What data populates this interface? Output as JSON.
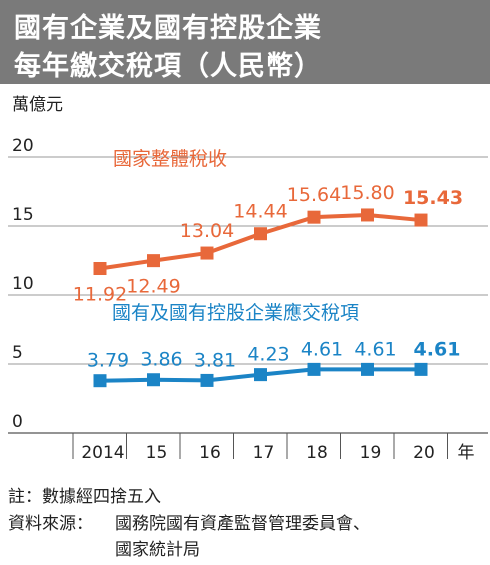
{
  "title": [
    "國有企業及國有控股企業",
    "每年繳交稅項（人民幣）"
  ],
  "footer": {
    "note": "註：數據經四捨五入",
    "source_label": "資料來源：",
    "source_lines": [
      "國務院國有資產監督管理委員會、",
      "國家統計局"
    ]
  },
  "colors": {
    "title_bg": "#7a7a7a",
    "series_orange": "#e8683a",
    "series_blue": "#1b84c6",
    "grid": "#9a9a9a",
    "text": "#222222"
  },
  "chart_data": {
    "type": "line",
    "ylabel": "萬億元",
    "xlabel": "",
    "x_unit_label": "年",
    "ylim": [
      0,
      20
    ],
    "yticks": [
      0,
      5,
      10,
      15,
      20
    ],
    "categories": [
      "2014",
      "15",
      "16",
      "17",
      "18",
      "19",
      "20"
    ],
    "grid": "horizontal",
    "series": [
      {
        "name": "國家整體稅收",
        "color": "#e8683a",
        "values": [
          11.92,
          12.49,
          13.04,
          14.44,
          15.64,
          15.8,
          15.43
        ],
        "labels": [
          "11.92",
          "12.49",
          "13.04",
          "14.44",
          "15.64",
          "15.80",
          "15.43"
        ]
      },
      {
        "name": "國有及國有控股企業應交稅項",
        "color": "#1b84c6",
        "values": [
          3.79,
          3.86,
          3.81,
          4.23,
          4.61,
          4.61,
          4.61
        ],
        "labels": [
          "3.79",
          "3.86",
          "3.81",
          "4.23",
          "4.61",
          "4.61",
          "4.61"
        ]
      }
    ]
  }
}
